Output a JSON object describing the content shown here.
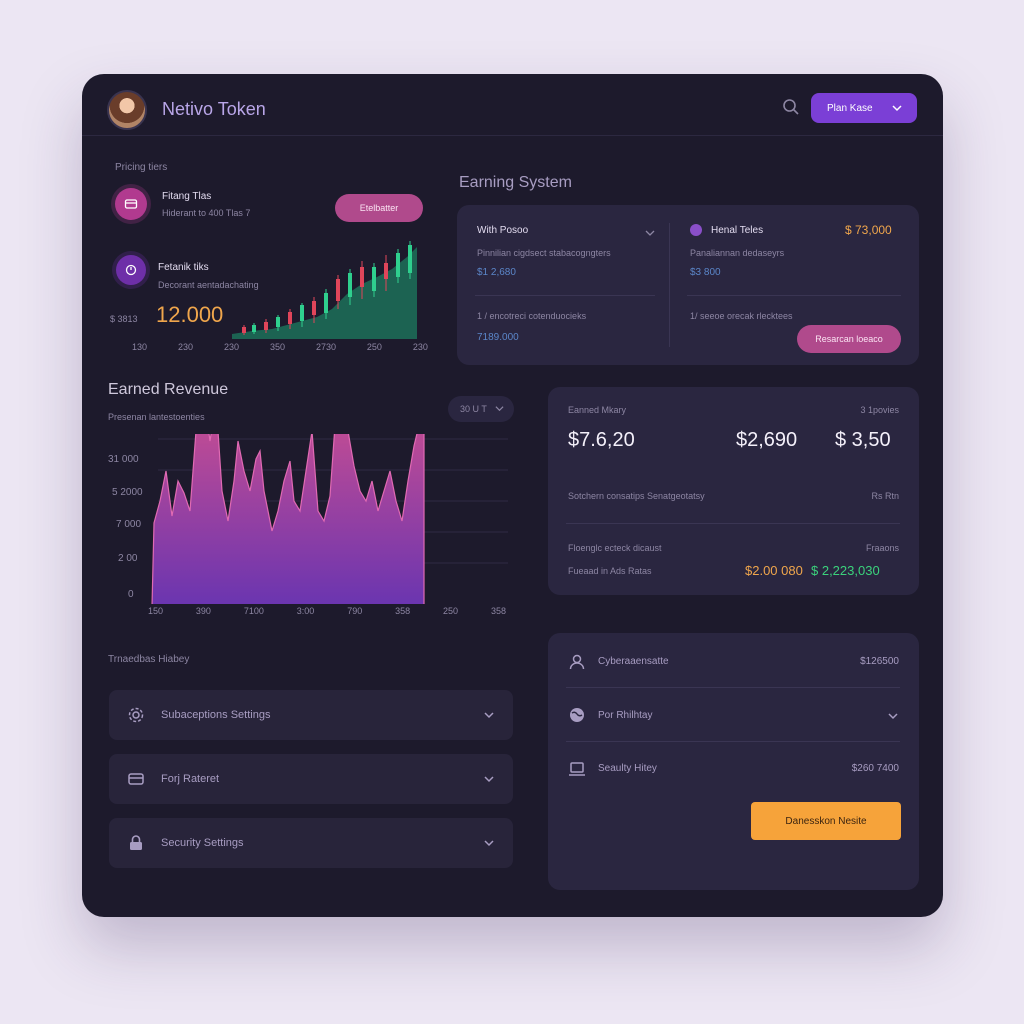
{
  "header": {
    "app_title": "Netivo Token",
    "account_button": "Plan Kase"
  },
  "tiers": {
    "section_label": "Pricing tiers",
    "tier1": {
      "name": "Fitang Tlas",
      "sub": "Hiderant to 400 Tlas 7",
      "button": "Etelbatter"
    },
    "tier2": {
      "name": "Fetanik tiks",
      "sub": "Decorant aentadachating",
      "side_value": "$ 3813",
      "value": "12.000"
    },
    "candle_ticks": [
      "130",
      "230",
      "230",
      "350",
      "2730",
      "250",
      "230"
    ]
  },
  "earning": {
    "title": "Earning System",
    "left": {
      "label": "With Posoo",
      "sub1": "Pinnilian cigdsect stabacogngters",
      "val1": "$1 2,680",
      "sub2": "1 / encotreci cotenduocieks",
      "val2": "7189.000"
    },
    "right": {
      "label": "Henal Teles",
      "amount": "$ 73,000",
      "sub1": "Panaliannan dedaseyrs",
      "val1": "$3 800",
      "sub2": "1/ seeoe orecak rlecktees",
      "button": "Resarcan loeaco"
    }
  },
  "revenue": {
    "title": "Earned Revenue",
    "subtitle": "Presenan lantestoenties",
    "filter": "30 U T",
    "y_ticks": [
      "31 000",
      "5 2000",
      "7 000",
      "2 00",
      "0"
    ],
    "x_ticks": [
      "150",
      "390",
      "7100",
      "3:00",
      "790",
      "358",
      "250",
      "358"
    ]
  },
  "stats": {
    "label": "Eanned Mkary",
    "right_label": "3 1povies",
    "values": [
      "$7.6,20",
      "$2,690",
      "$ 3,50"
    ],
    "row1_label": "Sotchern consatips Senatgeotatsy",
    "row1_right": "Rs Rtn",
    "row2_label": "Floenglc ecteck dicaust",
    "row2_right": "Fraaons",
    "row3_label": "Fueaad in Ads Ratas",
    "orange_value": "$2.00 080",
    "green_value": "$ 2,223,030"
  },
  "transactions": {
    "title": "Trnaedbas Hiabey",
    "rows": [
      {
        "label": "Subaceptions Settings"
      },
      {
        "label": "Forj Rateret"
      },
      {
        "label": "Security Settings"
      }
    ]
  },
  "list_card": {
    "rows": [
      {
        "label": "Cyberaaensatte",
        "value": "$126500"
      },
      {
        "label": "Por Rhilhtay",
        "value": ""
      },
      {
        "label": "Seaulty Hitey",
        "value": "$260 7400"
      }
    ],
    "cta": "Danesskon Nesite"
  },
  "colors": {
    "window": "#1d1a2c",
    "card": "#2a2640",
    "accent_purple": "#7b3fd6",
    "accent_pink": "#b04a8c",
    "accent_orange": "#f6a33a",
    "accent_green": "#3bd27c"
  },
  "icons": [
    "search-icon",
    "chevron-down-icon",
    "wallet-icon",
    "chart-icon",
    "user-icon",
    "globe-icon",
    "monitor-icon",
    "lock-icon",
    "gear-icon",
    "card-icon"
  ]
}
